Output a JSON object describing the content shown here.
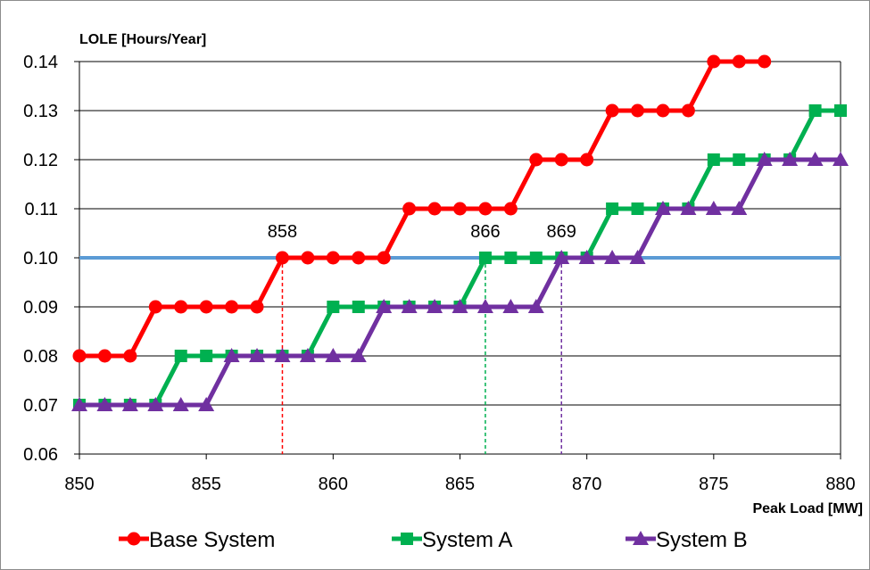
{
  "chart_data": {
    "type": "line",
    "title": "",
    "ylabel": "LOLE [Hours/Year]",
    "xlabel": "Peak Load [MW]",
    "xlim": [
      850,
      880
    ],
    "ylim": [
      0.06,
      0.14
    ],
    "xticks": [
      850,
      855,
      860,
      865,
      870,
      875,
      880
    ],
    "xtick_labels": [
      "850",
      "855",
      "860",
      "865",
      "870",
      "875",
      "880"
    ],
    "yticks": [
      0.06,
      0.07,
      0.08,
      0.09,
      0.1,
      0.11,
      0.12,
      0.13,
      0.14
    ],
    "ytick_labels": [
      "0.06",
      "0.07",
      "0.08",
      "0.09",
      "0.10",
      "0.11",
      "0.12",
      "0.13",
      "0.14"
    ],
    "grid": true,
    "legend_position": "bottom",
    "threshold": {
      "y": 0.1,
      "color": "#5b9bd5"
    },
    "series": [
      {
        "name": "Base System",
        "color": "#ff0000",
        "marker": "circle",
        "x": [
          850,
          851,
          852,
          853,
          854,
          855,
          856,
          857,
          858,
          859,
          860,
          861,
          862,
          863,
          864,
          865,
          866,
          867,
          868,
          869,
          870,
          871,
          872,
          873,
          874,
          875,
          876,
          877
        ],
        "y": [
          0.08,
          0.08,
          0.08,
          0.09,
          0.09,
          0.09,
          0.09,
          0.09,
          0.1,
          0.1,
          0.1,
          0.1,
          0.1,
          0.11,
          0.11,
          0.11,
          0.11,
          0.11,
          0.12,
          0.12,
          0.12,
          0.13,
          0.13,
          0.13,
          0.13,
          0.14,
          0.14,
          0.14
        ]
      },
      {
        "name": "System A",
        "color": "#00b050",
        "marker": "square",
        "x": [
          850,
          851,
          852,
          853,
          854,
          855,
          856,
          857,
          858,
          859,
          860,
          861,
          862,
          863,
          864,
          865,
          866,
          867,
          868,
          869,
          870,
          871,
          872,
          873,
          874,
          875,
          876,
          877,
          878,
          879,
          880
        ],
        "y": [
          0.07,
          0.07,
          0.07,
          0.07,
          0.08,
          0.08,
          0.08,
          0.08,
          0.08,
          0.08,
          0.09,
          0.09,
          0.09,
          0.09,
          0.09,
          0.09,
          0.1,
          0.1,
          0.1,
          0.1,
          0.1,
          0.11,
          0.11,
          0.11,
          0.11,
          0.12,
          0.12,
          0.12,
          0.12,
          0.13,
          0.13
        ]
      },
      {
        "name": "System B",
        "color": "#7030a0",
        "marker": "triangle",
        "x": [
          850,
          851,
          852,
          853,
          854,
          855,
          856,
          857,
          858,
          859,
          860,
          861,
          862,
          863,
          864,
          865,
          866,
          867,
          868,
          869,
          870,
          871,
          872,
          873,
          874,
          875,
          876,
          877,
          878,
          879,
          880
        ],
        "y": [
          0.07,
          0.07,
          0.07,
          0.07,
          0.07,
          0.07,
          0.08,
          0.08,
          0.08,
          0.08,
          0.08,
          0.08,
          0.09,
          0.09,
          0.09,
          0.09,
          0.09,
          0.09,
          0.09,
          0.1,
          0.1,
          0.1,
          0.1,
          0.11,
          0.11,
          0.11,
          0.11,
          0.12,
          0.12,
          0.12,
          0.12
        ]
      }
    ],
    "annotations": [
      {
        "text": "858",
        "x": 858,
        "y": 0.1,
        "color": "#ff0000"
      },
      {
        "text": "866",
        "x": 866,
        "y": 0.1,
        "color": "#00b050"
      },
      {
        "text": "869",
        "x": 869,
        "y": 0.1,
        "color": "#7030a0"
      }
    ]
  }
}
